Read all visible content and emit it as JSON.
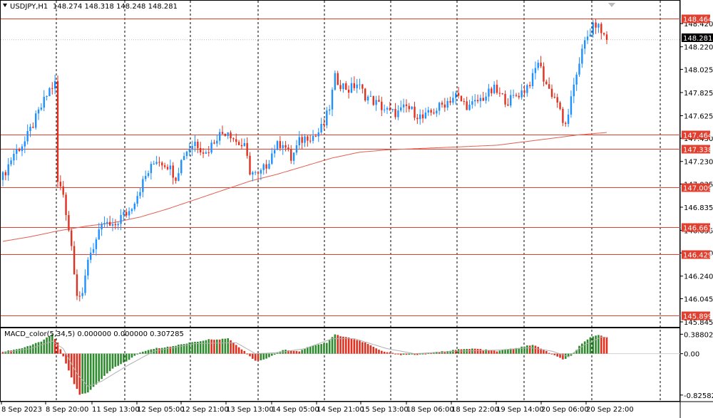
{
  "header": {
    "symbol": "USDJPY,H1",
    "ohlc": "148.274 148.318 148.248 148.281"
  },
  "macd_header": {
    "label": "MACD_color(5,34,5) 0.000000 0.000000 0.307285"
  },
  "colors": {
    "bull": "#1e90ff",
    "bear": "#e03020",
    "level_line": "#e04030",
    "ma_line": "#e06050",
    "macd_up": "#2e8b2e",
    "macd_down": "#e03020",
    "signal_line": "#b0b0b0",
    "grid": "#000000"
  },
  "current_price": "148.281",
  "chart_data": [
    {
      "type": "candlestick",
      "ylim": [
        145.845,
        148.55
      ],
      "y_ticks": [
        "148.420",
        "148.220",
        "148.025",
        "147.825",
        "147.625",
        "147.430",
        "147.230",
        "147.035",
        "146.835",
        "146.635",
        "146.440",
        "146.240",
        "146.045",
        "145.845"
      ],
      "horizontal_levels": [
        "148.464",
        "147.464",
        "147.338",
        "147.009",
        "146.661",
        "146.429",
        "145.899"
      ],
      "x_ticks": [
        "8 Sep 2023",
        "8 Sep 20:00",
        "11 Sep 13:00",
        "12 Sep 05:00",
        "12 Sep 21:00",
        "13 Sep 13:00",
        "14 Sep 05:00",
        "14 Sep 21:00",
        "15 Sep 13:00",
        "18 Sep 06:00",
        "18 Sep 22:00",
        "19 Sep 14:00",
        "20 Sep 06:00",
        "20 Sep 22:00"
      ],
      "close_path": [
        [
          0,
          147.1
        ],
        [
          4,
          147.3
        ],
        [
          8,
          147.4
        ],
        [
          11,
          147.55
        ],
        [
          14,
          147.7
        ],
        [
          17,
          147.85
        ],
        [
          19,
          147.9
        ],
        [
          20,
          147.05
        ],
        [
          22,
          146.95
        ],
        [
          25,
          146.5
        ],
        [
          27,
          146.1
        ],
        [
          29,
          146.05
        ],
        [
          31,
          146.4
        ],
        [
          34,
          146.55
        ],
        [
          37,
          146.7
        ],
        [
          40,
          146.65
        ],
        [
          43,
          146.75
        ],
        [
          46,
          146.8
        ],
        [
          49,
          146.95
        ],
        [
          52,
          147.1
        ],
        [
          56,
          147.25
        ],
        [
          60,
          147.2
        ],
        [
          63,
          147.1
        ],
        [
          66,
          147.3
        ],
        [
          70,
          147.4
        ],
        [
          74,
          147.3
        ],
        [
          78,
          147.45
        ],
        [
          82,
          147.5
        ],
        [
          85,
          147.4
        ],
        [
          88,
          147.35
        ],
        [
          90,
          147.15
        ],
        [
          93,
          147.1
        ],
        [
          96,
          147.2
        ],
        [
          99,
          147.35
        ],
        [
          102,
          147.4
        ],
        [
          105,
          147.25
        ],
        [
          108,
          147.4
        ],
        [
          111,
          147.45
        ],
        [
          114,
          147.45
        ],
        [
          117,
          147.55
        ],
        [
          119,
          147.7
        ],
        [
          121,
          147.95
        ],
        [
          123,
          147.9
        ],
        [
          126,
          147.85
        ],
        [
          129,
          147.9
        ],
        [
          132,
          147.8
        ],
        [
          135,
          147.75
        ],
        [
          138,
          147.7
        ],
        [
          141,
          147.65
        ],
        [
          144,
          147.65
        ],
        [
          147,
          147.7
        ],
        [
          150,
          147.65
        ],
        [
          153,
          147.6
        ],
        [
          156,
          147.65
        ],
        [
          159,
          147.7
        ],
        [
          162,
          147.75
        ],
        [
          165,
          147.8
        ],
        [
          167,
          147.75
        ],
        [
          170,
          147.7
        ],
        [
          173,
          147.75
        ],
        [
          176,
          147.8
        ],
        [
          179,
          147.85
        ],
        [
          181,
          147.8
        ],
        [
          184,
          147.75
        ],
        [
          187,
          147.8
        ],
        [
          190,
          147.85
        ],
        [
          193,
          147.95
        ],
        [
          195,
          148.1
        ],
        [
          197,
          147.95
        ],
        [
          199,
          147.85
        ],
        [
          202,
          147.75
        ],
        [
          204,
          147.55
        ],
        [
          206,
          147.6
        ],
        [
          208,
          147.9
        ],
        [
          210,
          148.1
        ],
        [
          212,
          148.25
        ],
        [
          214,
          148.35
        ],
        [
          216,
          148.42
        ],
        [
          218,
          148.35
        ],
        [
          220,
          148.28
        ]
      ],
      "moving_average": [
        [
          0,
          146.54
        ],
        [
          10,
          146.58
        ],
        [
          20,
          146.63
        ],
        [
          30,
          146.67
        ],
        [
          40,
          146.7
        ],
        [
          50,
          146.75
        ],
        [
          60,
          146.82
        ],
        [
          70,
          146.9
        ],
        [
          80,
          146.98
        ],
        [
          90,
          147.06
        ],
        [
          100,
          147.12
        ],
        [
          110,
          147.19
        ],
        [
          120,
          147.26
        ],
        [
          130,
          147.31
        ],
        [
          140,
          147.33
        ],
        [
          150,
          147.34
        ],
        [
          160,
          147.35
        ],
        [
          170,
          147.36
        ],
        [
          180,
          147.37
        ],
        [
          190,
          147.4
        ],
        [
          200,
          147.43
        ],
        [
          210,
          147.46
        ],
        [
          220,
          147.48
        ]
      ]
    },
    {
      "type": "bar",
      "name": "MACD_color(5,34,5)",
      "ylim": [
        -0.9,
        0.45
      ],
      "y_ticks": [
        "0.388029",
        "0.00",
        "-0.82582"
      ],
      "values_path": [
        [
          0,
          0.04
        ],
        [
          8,
          0.12
        ],
        [
          14,
          0.25
        ],
        [
          18,
          0.38
        ],
        [
          20,
          0.22
        ],
        [
          23,
          -0.2
        ],
        [
          26,
          -0.6
        ],
        [
          28,
          -0.82
        ],
        [
          31,
          -0.78
        ],
        [
          35,
          -0.55
        ],
        [
          40,
          -0.3
        ],
        [
          45,
          -0.15
        ],
        [
          50,
          0.02
        ],
        [
          55,
          0.1
        ],
        [
          62,
          0.15
        ],
        [
          68,
          0.22
        ],
        [
          75,
          0.28
        ],
        [
          82,
          0.3
        ],
        [
          88,
          0.05
        ],
        [
          92,
          -0.15
        ],
        [
          96,
          -0.1
        ],
        [
          102,
          0.08
        ],
        [
          108,
          0.05
        ],
        [
          112,
          0.15
        ],
        [
          118,
          0.22
        ],
        [
          121,
          0.38
        ],
        [
          126,
          0.32
        ],
        [
          132,
          0.22
        ],
        [
          138,
          0.05
        ],
        [
          145,
          -0.02
        ],
        [
          152,
          -0.02
        ],
        [
          158,
          0.03
        ],
        [
          165,
          0.08
        ],
        [
          172,
          0.1
        ],
        [
          180,
          0.05
        ],
        [
          188,
          0.12
        ],
        [
          193,
          0.18
        ],
        [
          198,
          0.05
        ],
        [
          204,
          -0.12
        ],
        [
          207,
          -0.05
        ],
        [
          210,
          0.15
        ],
        [
          214,
          0.32
        ],
        [
          217,
          0.38
        ],
        [
          220,
          0.32
        ]
      ],
      "signal_path": [
        [
          0,
          0.02
        ],
        [
          10,
          0.1
        ],
        [
          18,
          0.25
        ],
        [
          22,
          0.1
        ],
        [
          27,
          -0.4
        ],
        [
          31,
          -0.65
        ],
        [
          36,
          -0.55
        ],
        [
          45,
          -0.25
        ],
        [
          55,
          0.05
        ],
        [
          70,
          0.2
        ],
        [
          85,
          0.22
        ],
        [
          92,
          0.0
        ],
        [
          100,
          0.02
        ],
        [
          110,
          0.1
        ],
        [
          120,
          0.3
        ],
        [
          128,
          0.3
        ],
        [
          140,
          0.1
        ],
        [
          150,
          0.0
        ],
        [
          165,
          0.05
        ],
        [
          180,
          0.07
        ],
        [
          192,
          0.12
        ],
        [
          200,
          0.05
        ],
        [
          206,
          -0.06
        ],
        [
          212,
          0.18
        ],
        [
          218,
          0.33
        ],
        [
          220,
          0.32
        ]
      ]
    }
  ]
}
